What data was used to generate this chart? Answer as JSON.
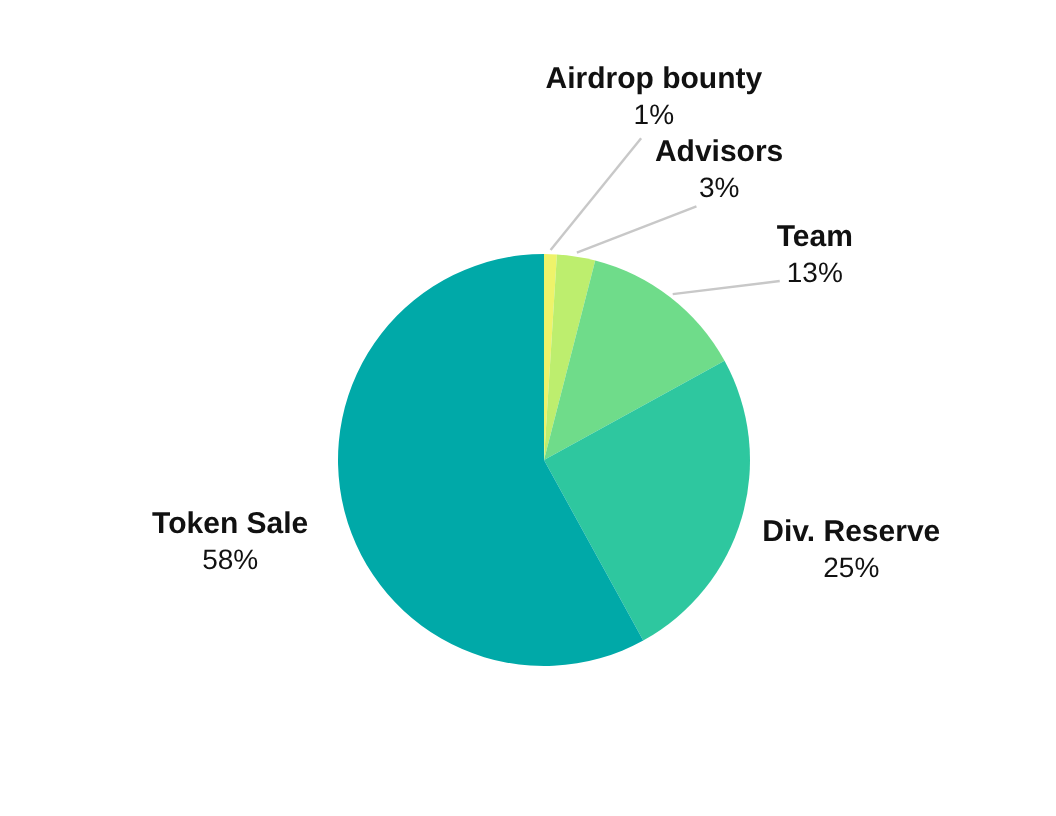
{
  "chart_data": {
    "type": "pie",
    "categories": [
      "Airdrop bounty",
      "Advisors",
      "Team",
      "Div. Reserve",
      "Token Sale"
    ],
    "values": [
      1,
      3,
      13,
      25,
      58
    ],
    "value_labels": [
      "1%",
      "3%",
      "13%",
      "25%",
      "58%"
    ],
    "colors": [
      "#eef36a",
      "#bdee6e",
      "#6fdc8a",
      "#2ec79f",
      "#00a9a8"
    ]
  }
}
